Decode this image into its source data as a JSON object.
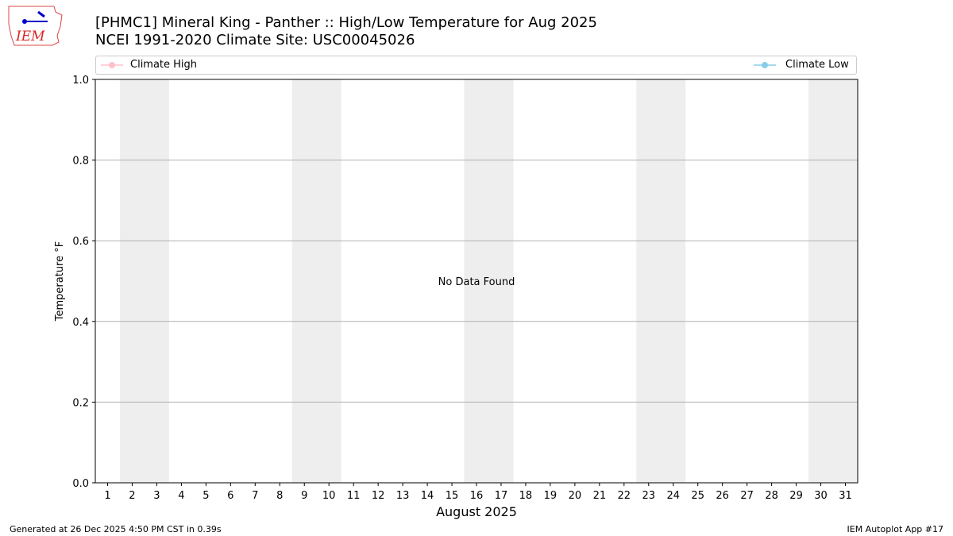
{
  "header": {
    "title_line1": "[PHMC1] Mineral King - Panther :: High/Low Temperature for Aug 2025",
    "title_line2": "NCEI 1991-2020 Climate Site: USC00045026",
    "logo_text": "IEM"
  },
  "footer": {
    "left": "Generated at 26 Dec 2025 4:50 PM CST in 0.39s",
    "right": "IEM Autoplot App #17"
  },
  "chart_data": {
    "type": "line",
    "title": "[PHMC1] Mineral King - Panther :: High/Low Temperature for Aug 2025",
    "xlabel": "August 2025",
    "ylabel": "Temperature °F",
    "xlim": [
      0.5,
      31.5
    ],
    "ylim": [
      0,
      1
    ],
    "x_ticks": [
      1,
      2,
      3,
      4,
      5,
      6,
      7,
      8,
      9,
      10,
      11,
      12,
      13,
      14,
      15,
      16,
      17,
      18,
      19,
      20,
      21,
      22,
      23,
      24,
      25,
      26,
      27,
      28,
      29,
      30,
      31
    ],
    "y_ticks": [
      "0.0",
      "0.2",
      "0.4",
      "0.6",
      "0.8",
      "1.0"
    ],
    "grid": "y",
    "weekend_shading": [
      [
        1.5,
        3.5
      ],
      [
        8.5,
        10.5
      ],
      [
        15.5,
        17.5
      ],
      [
        22.5,
        24.5
      ],
      [
        29.5,
        31.5
      ]
    ],
    "shade_color": "#eeeeee",
    "annotation": "No Data Found",
    "legend_position": "top",
    "series": [
      {
        "name": "Climate High",
        "color": "#ffc0cb",
        "values": []
      },
      {
        "name": "Climate Low",
        "color": "#87ceeb",
        "values": []
      }
    ]
  }
}
